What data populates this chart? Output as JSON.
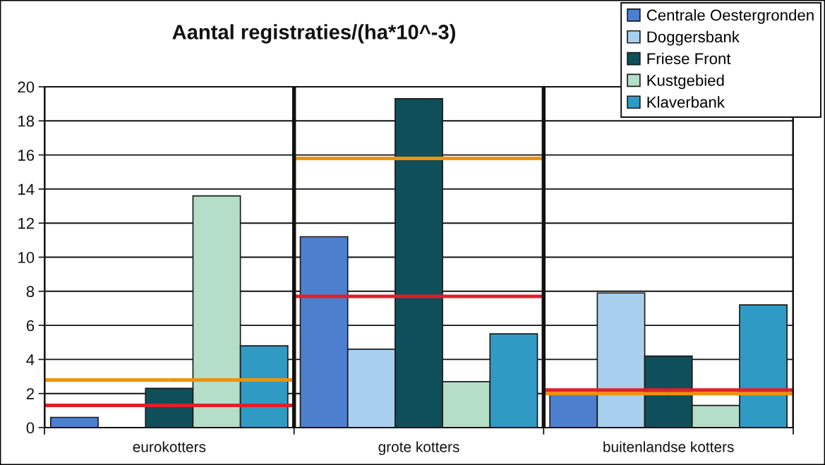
{
  "chart_data": {
    "type": "bar",
    "title": "Aantal registraties/(ha*10^-3)",
    "categories": [
      "eurokotters",
      "grote kotters",
      "buitenlandse kotters"
    ],
    "series": [
      {
        "name": "Centrale Oestergronden",
        "color": "#4d7fcf",
        "values": [
          0.6,
          11.2,
          2.0
        ]
      },
      {
        "name": "Doggersbank",
        "color": "#a8d0ee",
        "values": [
          null,
          4.6,
          7.9
        ]
      },
      {
        "name": "Friese Front",
        "color": "#0f4f5a",
        "values": [
          2.3,
          19.3,
          4.2
        ]
      },
      {
        "name": "Kustgebied",
        "color": "#b5dec8",
        "values": [
          13.6,
          2.7,
          1.3
        ]
      },
      {
        "name": "Klaverbank",
        "color": "#2f9bc4",
        "values": [
          4.8,
          5.5,
          7.2
        ]
      },
      {
        "type": "step",
        "color": "#f0920a",
        "values": [
          2.8,
          15.8,
          2.0
        ]
      },
      {
        "type": "step",
        "color": "#e0202a",
        "values": [
          1.3,
          7.7,
          2.2
        ]
      }
    ],
    "ylim": [
      0,
      20
    ],
    "yticks": [
      0,
      2,
      4,
      6,
      8,
      10,
      12,
      14,
      16,
      18,
      20
    ],
    "grid": true,
    "legend": "top right"
  }
}
